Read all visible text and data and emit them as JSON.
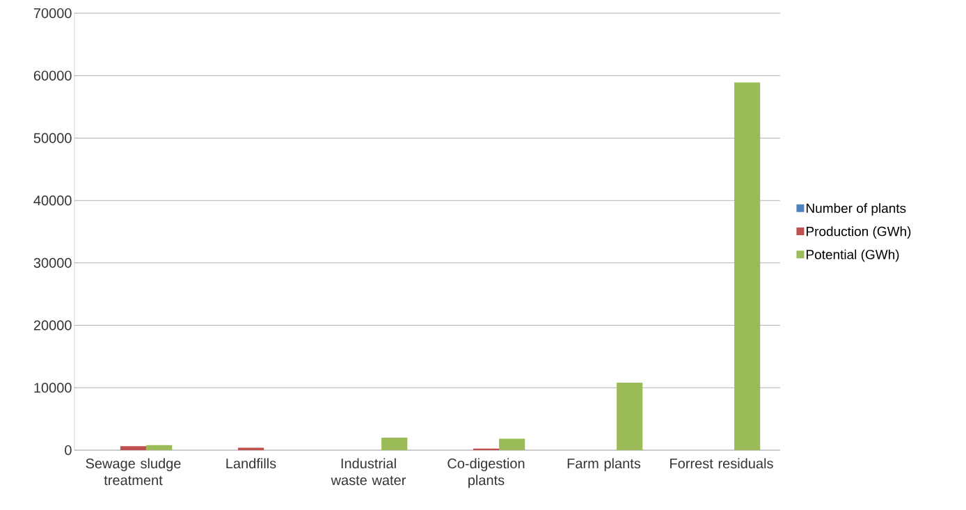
{
  "chart_data": {
    "type": "bar",
    "categories": [
      "Sewage sludge treatment",
      "Landfills",
      "Industrial waste water",
      "Co-digestion plants",
      "Farm plants",
      "Forrest residuals"
    ],
    "series": [
      {
        "name": "Number of plants",
        "color": "#4f81bd",
        "values": [
          0,
          0,
          0,
          0,
          0,
          0
        ]
      },
      {
        "name": "Production (GWh)",
        "color": "#c0504d",
        "values": [
          650,
          400,
          0,
          250,
          0,
          0
        ]
      },
      {
        "name": "Potential (GWh)",
        "color": "#9bbb59",
        "values": [
          800,
          0,
          2000,
          1850,
          10800,
          58900
        ]
      }
    ],
    "ylim": [
      0,
      70000
    ],
    "yticks": [
      0,
      10000,
      20000,
      30000,
      40000,
      50000,
      60000,
      70000
    ],
    "grid": "y",
    "legend": "right"
  }
}
